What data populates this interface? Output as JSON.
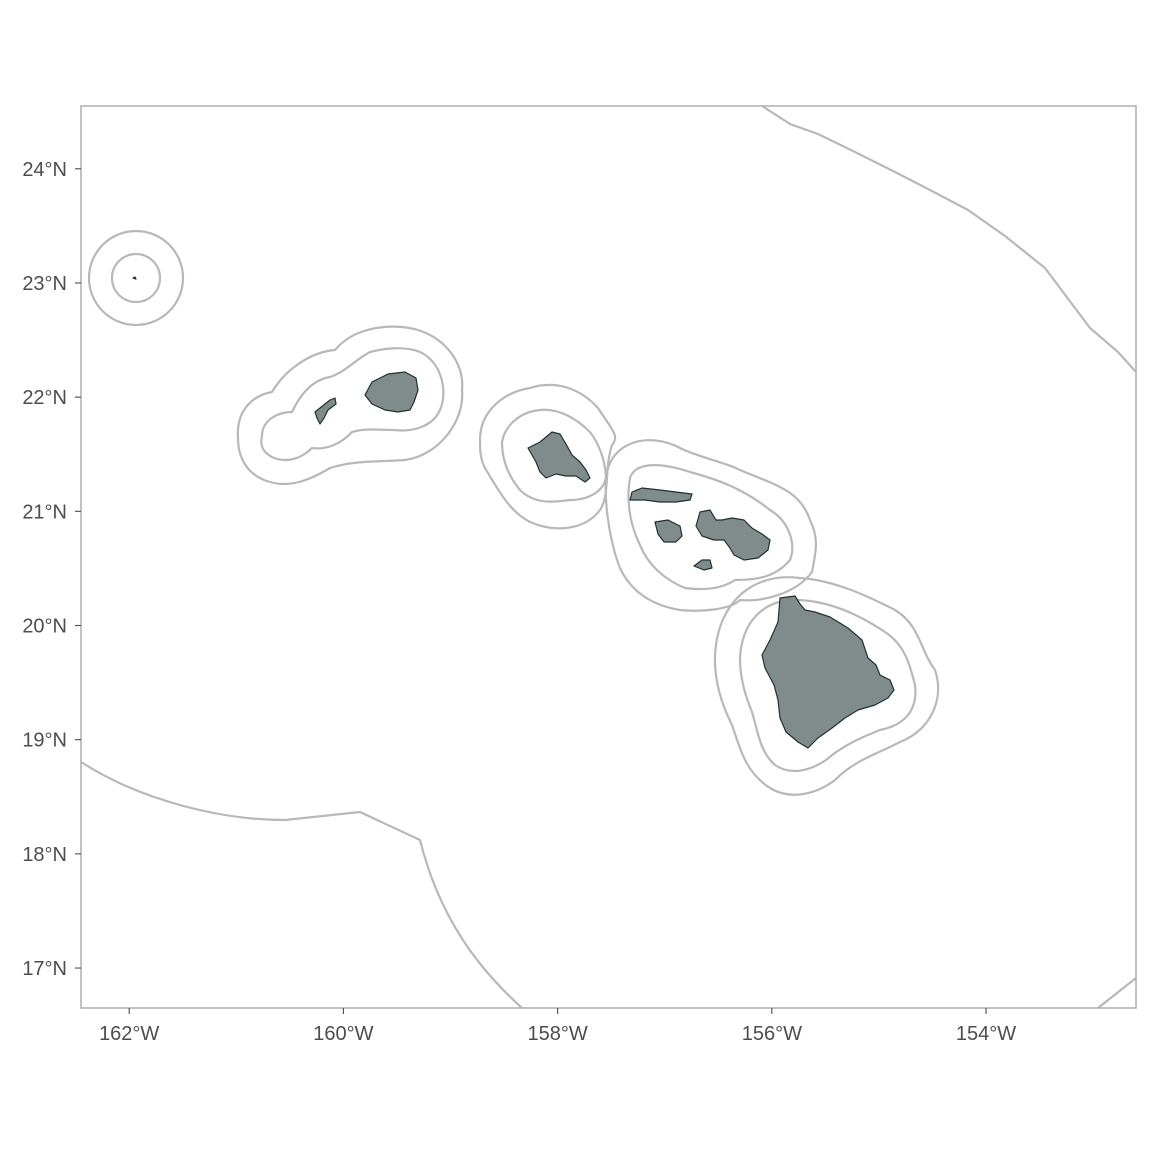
{
  "map": {
    "region": "Hawaiian Islands",
    "colors": {
      "land": "#7f8c8b",
      "land_outline": "#1f3131",
      "buffer_lines": "#b8b8b8",
      "panel_border": "#b3b3b3",
      "axis_text": "#4d4d4d"
    },
    "lon_range": [
      -162.45,
      -152.6
    ],
    "lat_range": [
      16.65,
      24.55
    ],
    "x_ticks": [
      {
        "value": -162,
        "label": "162°W"
      },
      {
        "value": -160,
        "label": "160°W"
      },
      {
        "value": -158,
        "label": "158°W"
      },
      {
        "value": -156,
        "label": "156°W"
      },
      {
        "value": -154,
        "label": "154°W"
      }
    ],
    "y_ticks": [
      {
        "value": 24,
        "label": "24°N"
      },
      {
        "value": 23,
        "label": "23°N"
      },
      {
        "value": 22,
        "label": "22°N"
      },
      {
        "value": 21,
        "label": "21°N"
      },
      {
        "value": 20,
        "label": "20°N"
      },
      {
        "value": 19,
        "label": "19°N"
      },
      {
        "value": 18,
        "label": "18°N"
      },
      {
        "value": 17,
        "label": "17°N"
      }
    ],
    "layers": [
      "islands",
      "inner-buffer",
      "outer-buffer",
      "eez-boundary"
    ],
    "islands": [
      "Niihau",
      "Kauai",
      "Oahu",
      "Molokai",
      "Lanai",
      "Maui",
      "Kahoolawe",
      "Hawaii",
      "Nihoa"
    ]
  }
}
